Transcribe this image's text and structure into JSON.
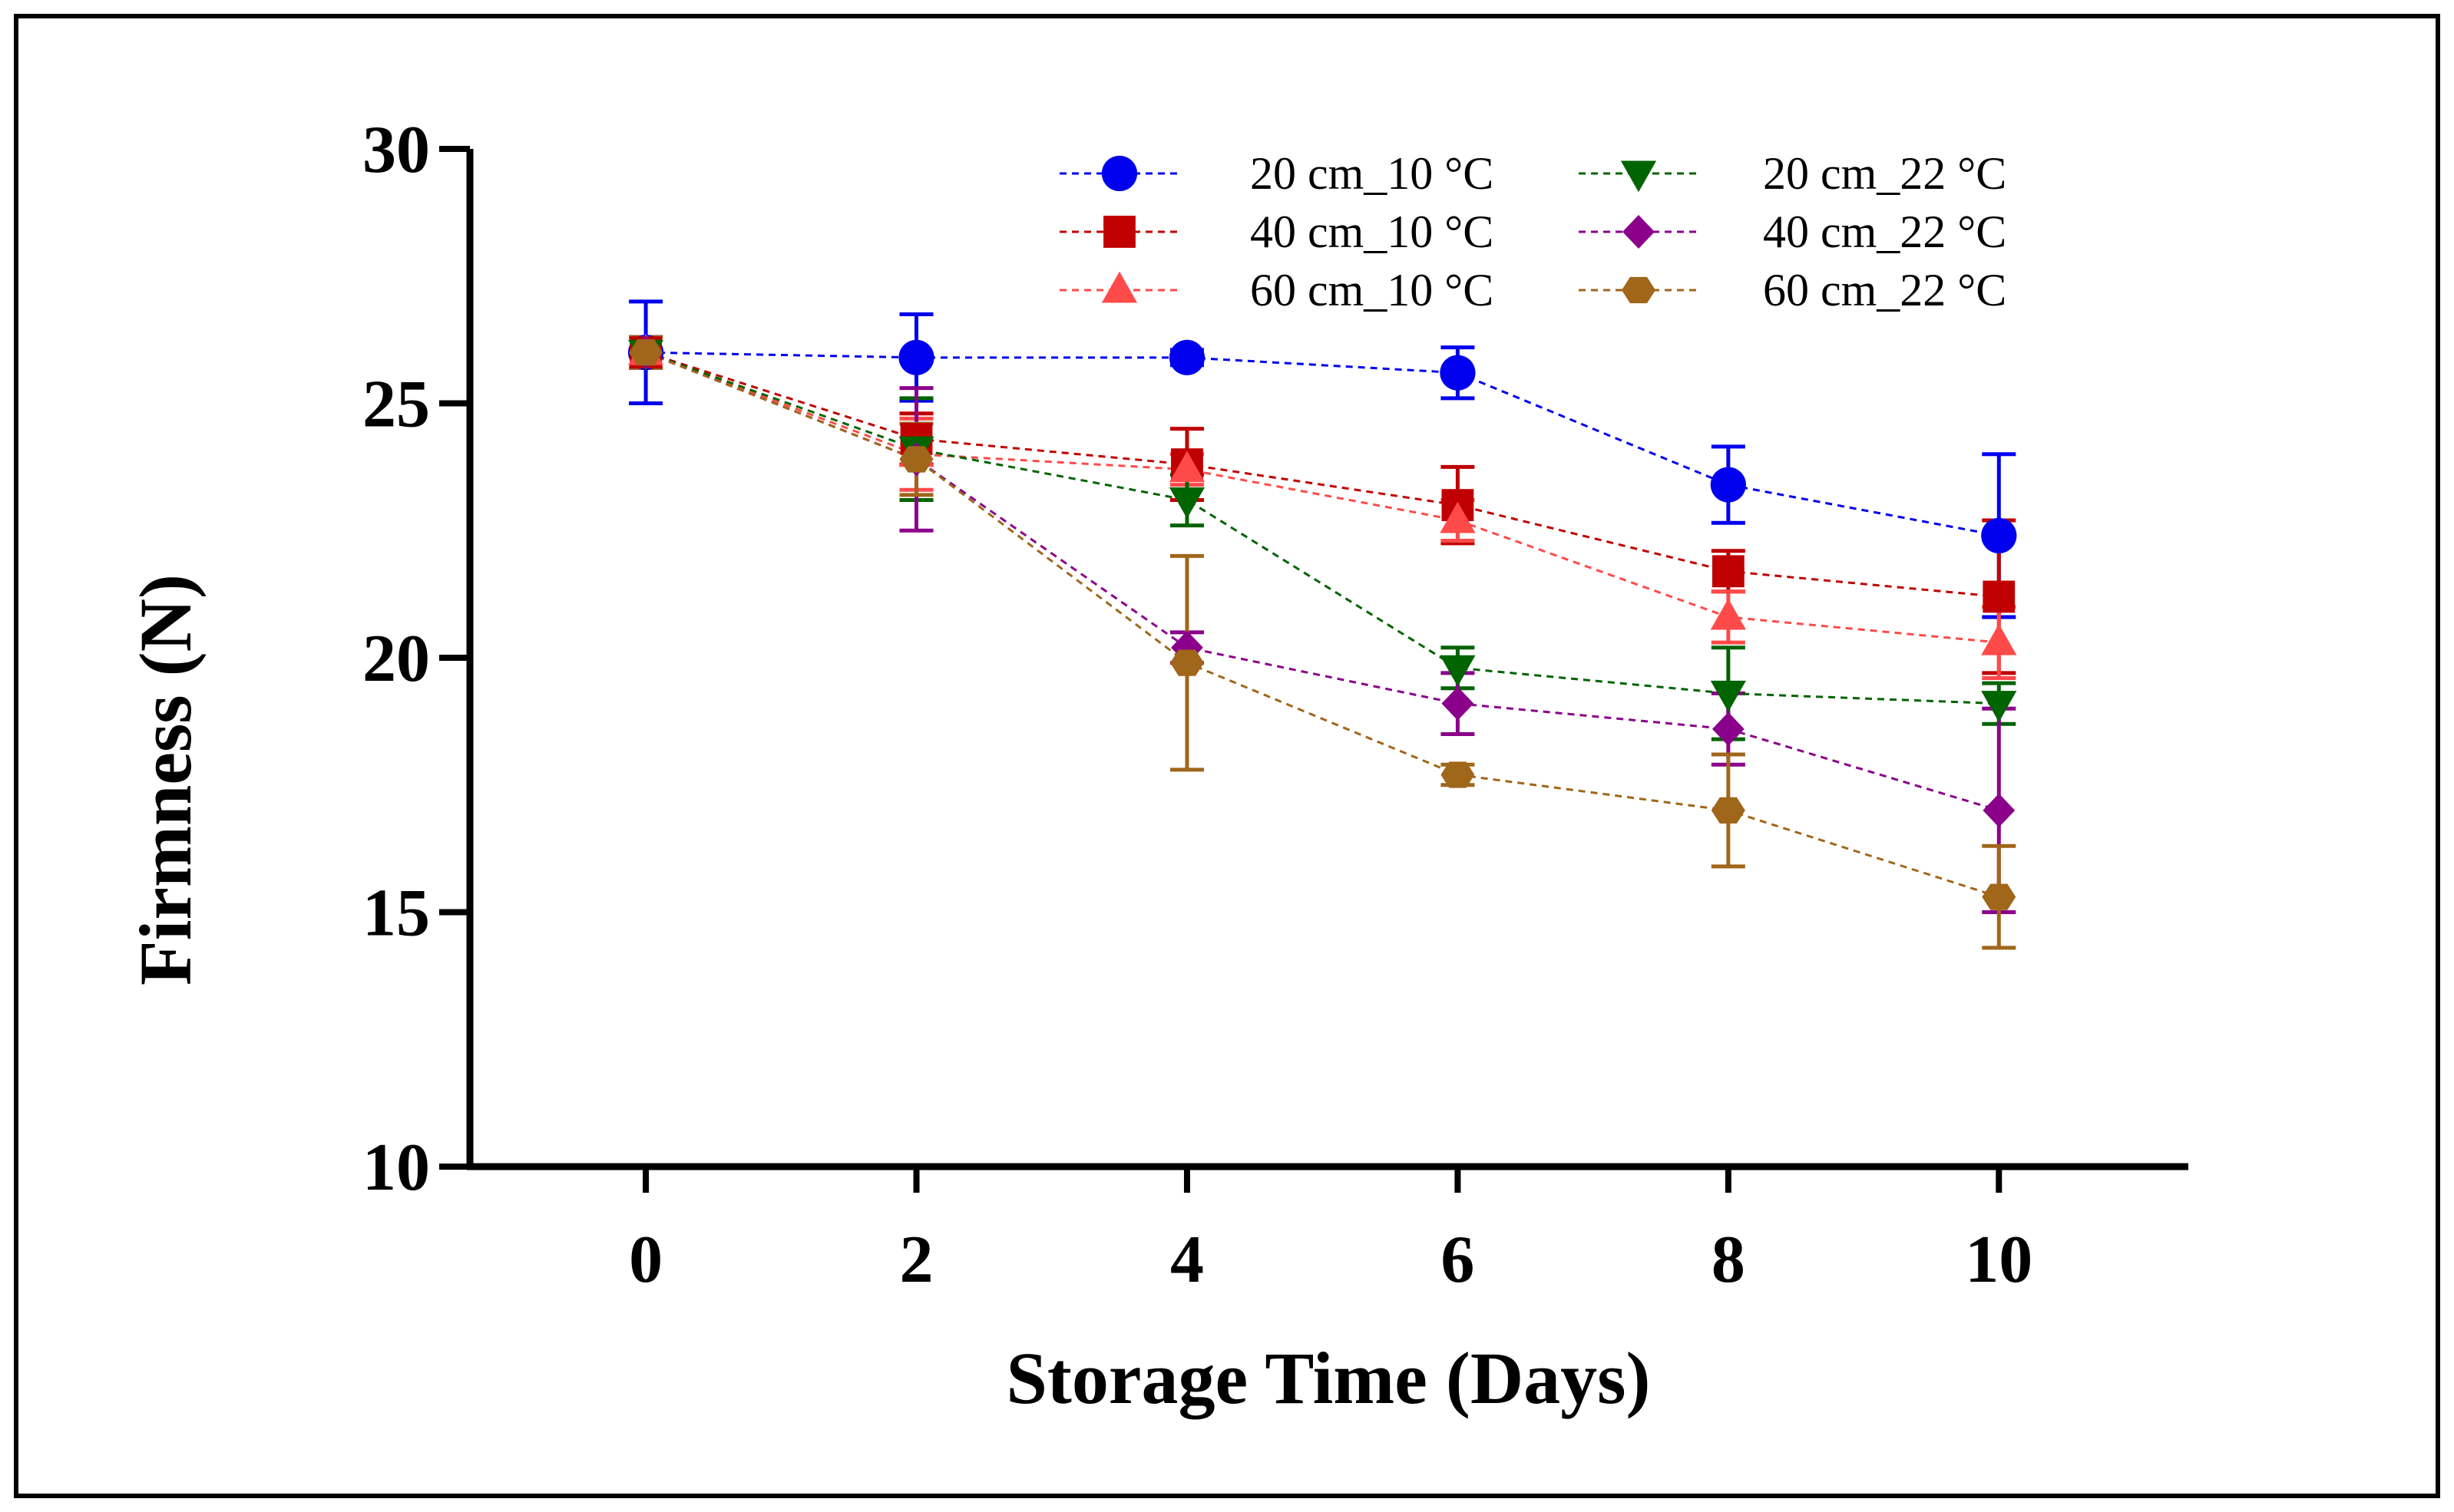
{
  "chart_data": {
    "type": "line",
    "title": "",
    "xlabel": "Storage Time (Days)",
    "ylabel": "Firmness (N)",
    "xlim": [
      -1.3,
      11.4
    ],
    "ylim": [
      10,
      30
    ],
    "x": [
      0,
      2,
      4,
      6,
      8,
      10
    ],
    "xticks": [
      0,
      2,
      4,
      6,
      8,
      10
    ],
    "yticks": [
      10,
      15,
      20,
      25,
      30
    ],
    "grid": false,
    "legend_position": "top-right",
    "series": [
      {
        "name": "20 cm_10 °C",
        "color": "#0000ee",
        "marker": "circle",
        "values": [
          26.0,
          25.9,
          25.9,
          25.6,
          23.4,
          22.4
        ],
        "errors": [
          1.0,
          0.85,
          0.15,
          0.5,
          0.75,
          1.6
        ]
      },
      {
        "name": "40 cm_10 °C",
        "color": "#c00000",
        "marker": "square",
        "values": [
          26.0,
          24.3,
          23.8,
          23.0,
          21.7,
          21.2
        ],
        "errors": [
          0.3,
          0.5,
          0.7,
          0.75,
          0.4,
          1.5
        ]
      },
      {
        "name": "60 cm_10 °C",
        "color": "#ff4a4a",
        "marker": "triangle-up",
        "values": [
          26.0,
          24.0,
          23.7,
          22.7,
          20.8,
          20.3
        ],
        "errors": [
          0.3,
          0.7,
          0.3,
          0.4,
          0.5,
          0.7
        ]
      },
      {
        "name": "20 cm_22 °C",
        "color": "#006400",
        "marker": "triangle-down",
        "values": [
          26.0,
          24.1,
          23.1,
          19.8,
          19.3,
          19.1
        ],
        "errors": [
          0.3,
          1.0,
          0.5,
          0.4,
          0.9,
          0.4
        ]
      },
      {
        "name": "40 cm_22 °C",
        "color": "#8b008b",
        "marker": "diamond",
        "values": [
          26.0,
          23.9,
          20.2,
          19.1,
          18.6,
          17.0
        ],
        "errors": [
          0.3,
          1.4,
          0.3,
          0.6,
          0.7,
          2.0
        ]
      },
      {
        "name": "60 cm_22 °C",
        "color": "#a0661a",
        "marker": "hexagon",
        "values": [
          26.0,
          23.9,
          19.9,
          17.7,
          17.0,
          15.3
        ],
        "errors": [
          0.3,
          0.7,
          2.1,
          0.2,
          1.1,
          1.0
        ]
      }
    ]
  }
}
